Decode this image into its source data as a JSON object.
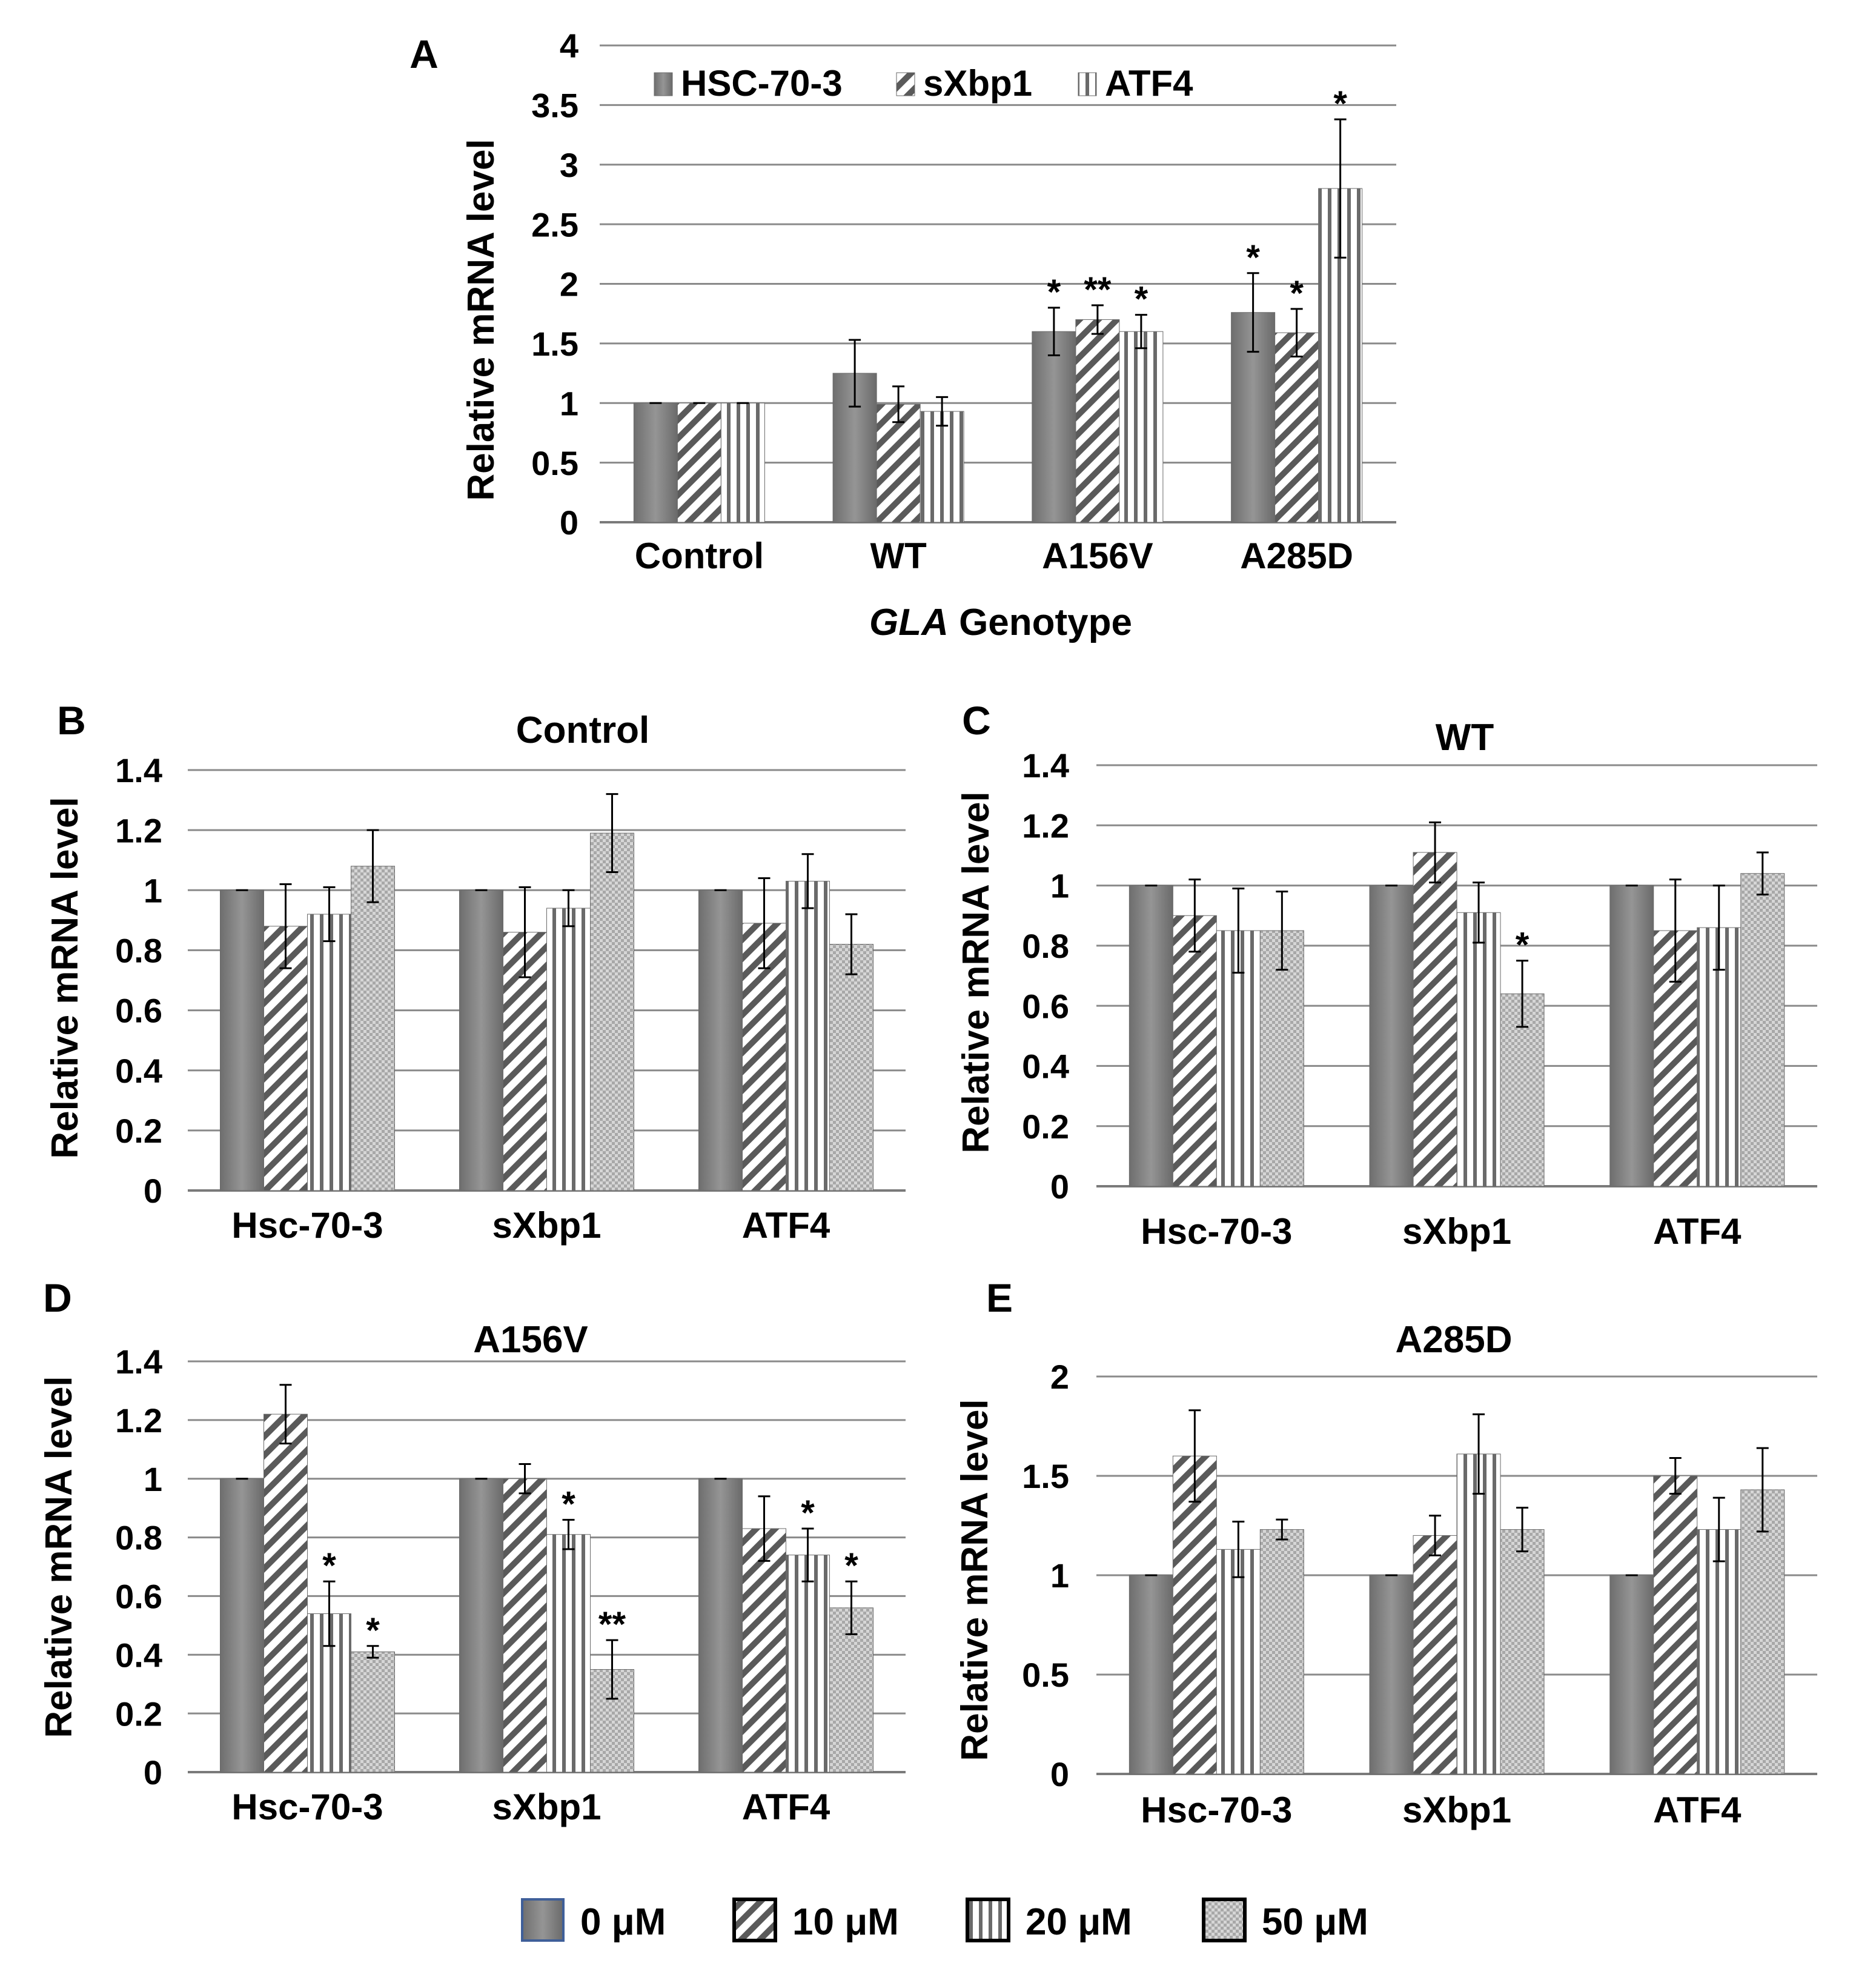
{
  "colors": {
    "solid": "#8c8c8c",
    "solid_dark": "#6f6f6f",
    "hatch": "#5a5a5a",
    "grid": "#8a8a8a",
    "axis": "#7a7a7a",
    "legend_box_border": "#3f5f99"
  },
  "bottom_legend": {
    "entries": [
      "0 μM",
      "10 μM",
      "20 μM",
      "50 μM"
    ],
    "patterns": [
      "solid",
      "diag",
      "vert",
      "check"
    ]
  },
  "chart_data": [
    {
      "id": "A",
      "panel_label": "A",
      "type": "bar",
      "title": "",
      "xlabel_italic": "GLA",
      "xlabel_rest": " Genotype",
      "ylabel": "Relative mRNA level",
      "ylim": [
        0,
        4
      ],
      "yticks": [
        0,
        0.5,
        1,
        1.5,
        2,
        2.5,
        3,
        3.5,
        4
      ],
      "ytick_labels": [
        "0",
        "0.5",
        "1",
        "1.5",
        "2",
        "2.5",
        "3",
        "3.5",
        "4"
      ],
      "grid": true,
      "legend_position": "top-left",
      "categories": [
        "Control",
        "WT",
        "A156V",
        "A285D"
      ],
      "series": [
        {
          "name": "HSC-70-3",
          "pattern": "solid",
          "values": [
            1.0,
            1.25,
            1.6,
            1.76
          ],
          "errors": [
            0,
            0.28,
            0.2,
            0.33
          ],
          "stars": [
            "",
            "",
            "*",
            "*"
          ]
        },
        {
          "name": "sXbp1",
          "pattern": "diag",
          "values": [
            1.0,
            0.99,
            1.7,
            1.59
          ],
          "errors": [
            0,
            0.15,
            0.12,
            0.2
          ],
          "stars": [
            "",
            "",
            "**",
            "*"
          ]
        },
        {
          "name": "ATF4",
          "pattern": "vert",
          "values": [
            1.0,
            0.93,
            1.6,
            2.8
          ],
          "errors": [
            0,
            0.12,
            0.14,
            0.58
          ],
          "stars": [
            "",
            "",
            "*",
            "*"
          ]
        }
      ]
    },
    {
      "id": "B",
      "panel_label": "B",
      "type": "bar",
      "title": "Control",
      "ylabel": "Relative mRNA level",
      "ylim": [
        0,
        1.4
      ],
      "yticks": [
        0,
        0.2,
        0.4,
        0.6,
        0.8,
        1,
        1.2,
        1.4
      ],
      "ytick_labels": [
        "0",
        "0.2",
        "0.4",
        "0.6",
        "0.8",
        "1",
        "1.2",
        "1.4"
      ],
      "grid": true,
      "categories": [
        "Hsc-70-3",
        "sXbp1",
        "ATF4"
      ],
      "series": [
        {
          "name": "0 μM",
          "pattern": "solid",
          "values": [
            1.0,
            1.0,
            1.0
          ],
          "errors": [
            0,
            0,
            0
          ],
          "stars": [
            "",
            "",
            ""
          ]
        },
        {
          "name": "10 μM",
          "pattern": "diag",
          "values": [
            0.88,
            0.86,
            0.89
          ],
          "errors": [
            0.14,
            0.15,
            0.15
          ],
          "stars": [
            "",
            "",
            ""
          ]
        },
        {
          "name": "20 μM",
          "pattern": "vert",
          "values": [
            0.92,
            0.94,
            1.03
          ],
          "errors": [
            0.09,
            0.06,
            0.09
          ],
          "stars": [
            "",
            "",
            ""
          ]
        },
        {
          "name": "50 μM",
          "pattern": "check",
          "values": [
            1.08,
            1.19,
            0.82
          ],
          "errors": [
            0.12,
            0.13,
            0.1
          ],
          "stars": [
            "",
            "",
            ""
          ]
        }
      ]
    },
    {
      "id": "C",
      "panel_label": "C",
      "type": "bar",
      "title": "WT",
      "ylabel": "Relative mRNA level",
      "ylim": [
        0,
        1.4
      ],
      "yticks": [
        0,
        0.2,
        0.4,
        0.6,
        0.8,
        1,
        1.2,
        1.4
      ],
      "ytick_labels": [
        "0",
        "0.2",
        "0.4",
        "0.6",
        "0.8",
        "1",
        "1.2",
        "1.4"
      ],
      "grid": true,
      "categories": [
        "Hsc-70-3",
        "sXbp1",
        "ATF4"
      ],
      "series": [
        {
          "name": "0 μM",
          "pattern": "solid",
          "values": [
            1.0,
            1.0,
            1.0
          ],
          "errors": [
            0,
            0,
            0
          ],
          "stars": [
            "",
            "",
            ""
          ]
        },
        {
          "name": "10 μM",
          "pattern": "diag",
          "values": [
            0.9,
            1.11,
            0.85
          ],
          "errors": [
            0.12,
            0.1,
            0.17
          ],
          "stars": [
            "",
            "",
            ""
          ]
        },
        {
          "name": "20 μM",
          "pattern": "vert",
          "values": [
            0.85,
            0.91,
            0.86
          ],
          "errors": [
            0.14,
            0.1,
            0.14
          ],
          "stars": [
            "",
            "",
            ""
          ]
        },
        {
          "name": "50 μM",
          "pattern": "check",
          "values": [
            0.85,
            0.64,
            1.04
          ],
          "errors": [
            0.13,
            0.11,
            0.07
          ],
          "stars": [
            "",
            "*",
            ""
          ]
        }
      ]
    },
    {
      "id": "D",
      "panel_label": "D",
      "type": "bar",
      "title": "A156V",
      "ylabel": "Relative mRNA level",
      "ylim": [
        0,
        1.4
      ],
      "yticks": [
        0,
        0.2,
        0.4,
        0.6,
        0.8,
        1,
        1.2,
        1.4
      ],
      "ytick_labels": [
        "0",
        "0.2",
        "0.4",
        "0.6",
        "0.8",
        "1",
        "1.2",
        "1.4"
      ],
      "grid": true,
      "categories": [
        "Hsc-70-3",
        "sXbp1",
        "ATF4"
      ],
      "series": [
        {
          "name": "0 μM",
          "pattern": "solid",
          "values": [
            1.0,
            1.0,
            1.0
          ],
          "errors": [
            0,
            0,
            0
          ],
          "stars": [
            "",
            "",
            ""
          ]
        },
        {
          "name": "10 μM",
          "pattern": "diag",
          "values": [
            1.22,
            1.0,
            0.83
          ],
          "errors": [
            0.1,
            0.05,
            0.11
          ],
          "stars": [
            "",
            "",
            ""
          ]
        },
        {
          "name": "20 μM",
          "pattern": "vert",
          "values": [
            0.54,
            0.81,
            0.74
          ],
          "errors": [
            0.11,
            0.05,
            0.09
          ],
          "stars": [
            "*",
            "*",
            "*"
          ]
        },
        {
          "name": "50 μM",
          "pattern": "check",
          "values": [
            0.41,
            0.35,
            0.56
          ],
          "errors": [
            0.02,
            0.1,
            0.09
          ],
          "stars": [
            "*",
            "**",
            "*"
          ]
        }
      ]
    },
    {
      "id": "E",
      "panel_label": "E",
      "type": "bar",
      "title": "A285D",
      "ylabel": "Relative mRNA level",
      "ylim": [
        0,
        2
      ],
      "yticks": [
        0,
        0.5,
        1,
        1.5,
        2
      ],
      "ytick_labels": [
        "0",
        "0.5",
        "1",
        "1.5",
        "2"
      ],
      "grid": true,
      "categories": [
        "Hsc-70-3",
        "sXbp1",
        "ATF4"
      ],
      "series": [
        {
          "name": "0 μM",
          "pattern": "solid",
          "values": [
            1.0,
            1.0,
            1.0
          ],
          "errors": [
            0,
            0,
            0
          ],
          "stars": [
            "",
            "",
            ""
          ]
        },
        {
          "name": "10 μM",
          "pattern": "diag",
          "values": [
            1.6,
            1.2,
            1.5
          ],
          "errors": [
            0.23,
            0.1,
            0.09
          ],
          "stars": [
            "",
            "",
            ""
          ]
        },
        {
          "name": "20 μM",
          "pattern": "vert",
          "values": [
            1.13,
            1.61,
            1.23
          ],
          "errors": [
            0.14,
            0.2,
            0.16
          ],
          "stars": [
            "",
            "",
            ""
          ]
        },
        {
          "name": "50 μM",
          "pattern": "check",
          "values": [
            1.23,
            1.23,
            1.43
          ],
          "errors": [
            0.05,
            0.11,
            0.21
          ],
          "stars": [
            "",
            "",
            ""
          ]
        }
      ]
    }
  ]
}
